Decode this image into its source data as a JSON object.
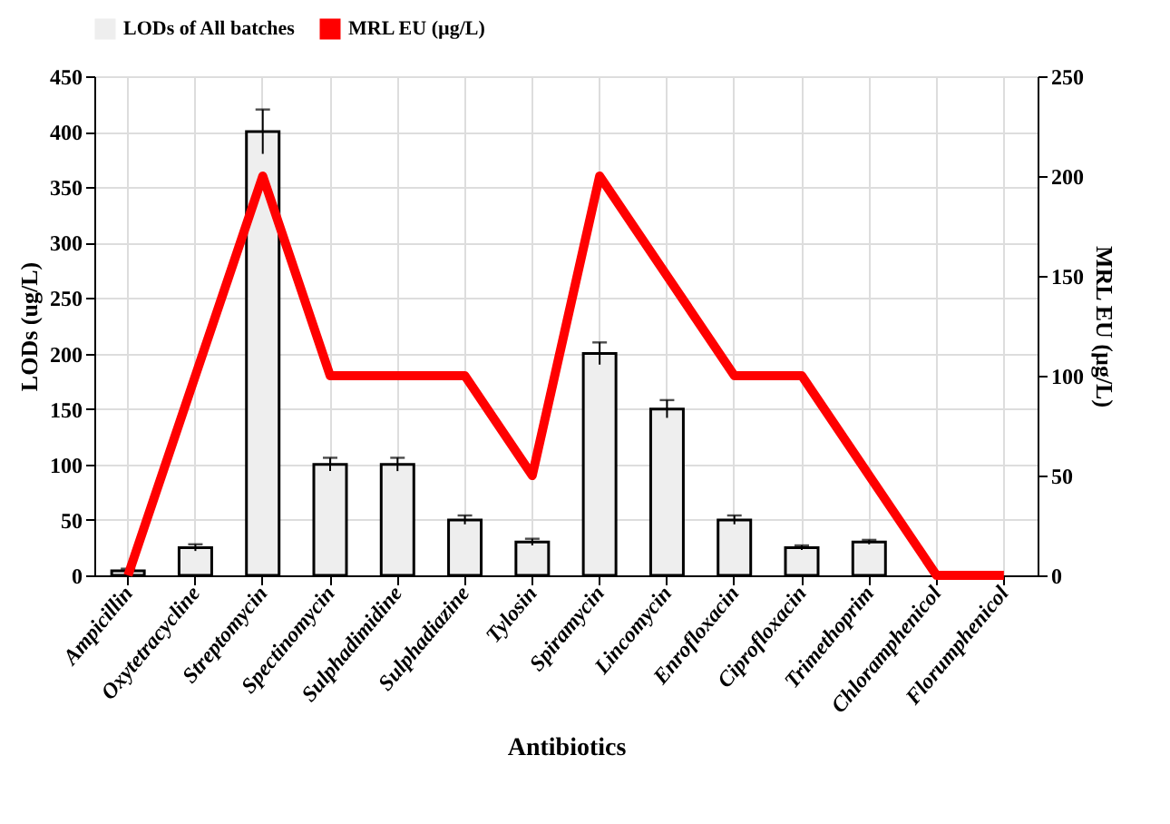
{
  "chart_data": {
    "type": "bar",
    "xlabel": "Antibiotics",
    "ylabel": "LODs (ug/L)",
    "y2label": "MRL EU (µg/L)",
    "categories": [
      "Ampicillin",
      "Oxytetracycline",
      "Streptomycin",
      "Spectinomycin",
      "Sulphadimidine",
      "Sulphadiazine",
      "Tylosin",
      "Spiramycin",
      "Lincomycin",
      "Enrofloxacin",
      "Ciprofloxacin",
      "Trimethoprim",
      "Chloramphenicol",
      "Florumphenicol"
    ],
    "series": [
      {
        "name": "LODs of All batches",
        "color": "#eeeeee",
        "values": [
          4,
          25,
          400,
          100,
          100,
          50,
          30,
          200,
          150,
          50,
          25,
          30,
          null,
          null
        ],
        "errors": [
          2,
          3,
          20,
          6,
          6,
          4,
          3,
          10,
          8,
          4,
          2,
          2,
          null,
          null
        ]
      },
      {
        "name": "MRL EU (µg/L)",
        "type": "line",
        "axis": "y2",
        "color": "#ff0000",
        "values": [
          0,
          100,
          200,
          100,
          100,
          100,
          50,
          200,
          150,
          100,
          100,
          50,
          0,
          0
        ]
      }
    ],
    "ylim": [
      0,
      450
    ],
    "yticks": [
      0,
      50,
      100,
      150,
      200,
      250,
      300,
      350,
      400,
      450
    ],
    "y2lim": [
      0,
      250
    ],
    "y2ticks": [
      0,
      50,
      100,
      150,
      200,
      250
    ],
    "grid": true,
    "legend": "top",
    "line_style": "solid",
    "marker": "none"
  }
}
